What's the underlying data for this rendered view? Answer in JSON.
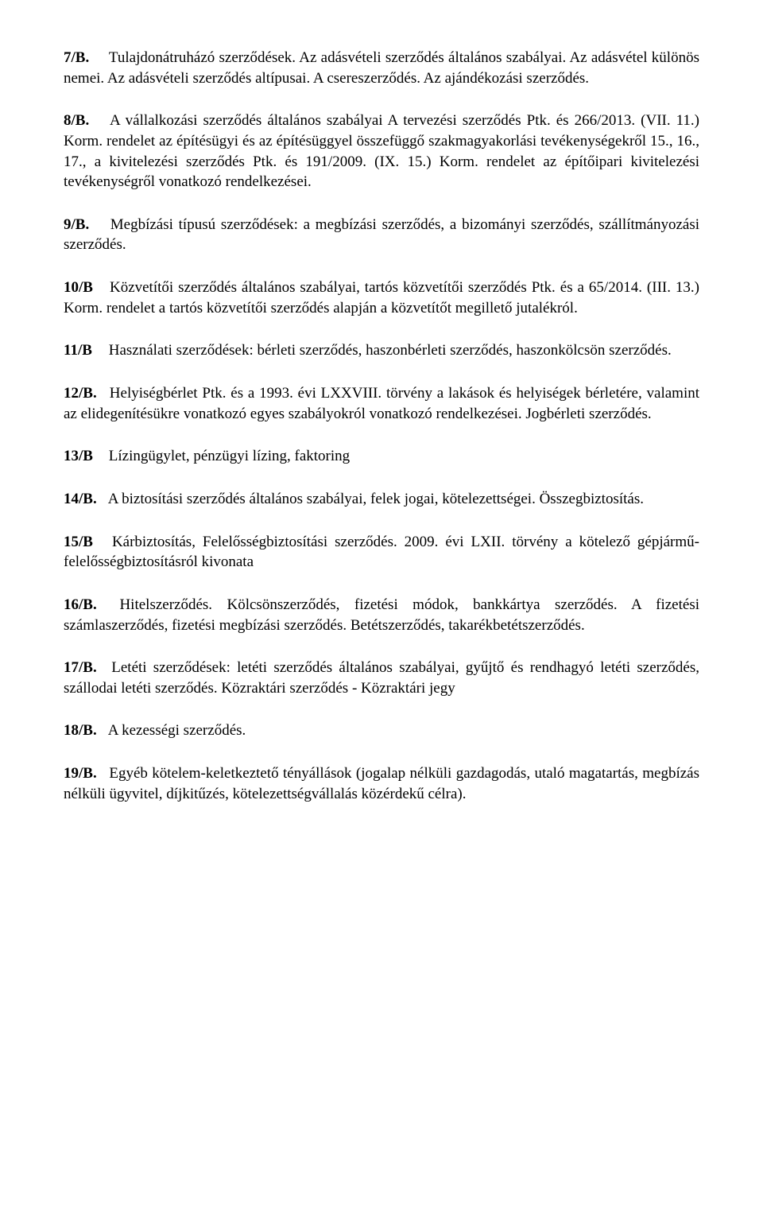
{
  "items": [
    {
      "label": "7/B.",
      "text": "Tulajdonátruházó szerződések. Az adásvételi szerződés általános szabályai. Az adásvétel különös nemei. Az adásvételi szerződés altípusai. A csereszerződés. Az ajándékozási szerződés."
    },
    {
      "label": "8/B.",
      "text": "A vállalkozási szerződés általános szabályai A tervezési szerződés Ptk. és 266/2013. (VII. 11.) Korm. rendelet az építésügyi és az építésüggyel összefüggő szakmagyakorlási tevékenységekről 15., 16., 17., a kivitelezési szerződés Ptk. és 191/2009. (IX. 15.) Korm. rendelet az építőipari kivitelezési tevékenységről vonatkozó rendelkezései."
    },
    {
      "label": "9/B.",
      "text": "Megbízási típusú szerződések: a megbízási szerződés, a bizományi szerződés, szállítmányozási szerződés."
    },
    {
      "label": "10/B",
      "text": "Közvetítői szerződés általános szabályai, tartós közvetítői szerződés Ptk. és a 65/2014. (III. 13.) Korm. rendelet a tartós közvetítői szerződés alapján a közvetítőt megillető jutalékról."
    },
    {
      "label": "11/B",
      "text": "Használati szerződések: bérleti szerződés, haszonbérleti szerződés, haszonkölcsön szerződés."
    },
    {
      "label": "12/B.",
      "text": "Helyiségbérlet Ptk. és a 1993. évi LXXVIII. törvény a lakások és helyiségek bérletére, valamint az elidegenítésükre vonatkozó egyes szabályokról vonatkozó rendelkezései. Jogbérleti szerződés."
    },
    {
      "label": "13/B",
      "text": "Lízingügylet, pénzügyi lízing, faktoring"
    },
    {
      "label": "14/B.",
      "text": "A biztosítási szerződés általános szabályai, felek jogai, kötelezettségei. Összegbiztosítás."
    },
    {
      "label": "15/B",
      "text": "Kárbiztosítás, Felelősségbiztosítási szerződés. 2009. évi LXII. törvény a kötelező gépjármű-felelősségbiztosításról kivonata"
    },
    {
      "label": "16/B.",
      "text": "Hitelszerződés. Kölcsönszerződés, fizetési módok, bankkártya szerződés. A fizetési számlaszerződés, fizetési megbízási szerződés. Betétszerződés, takarékbetétszerződés."
    },
    {
      "label": "17/B.",
      "text": "Letéti szerződések: letéti szerződés általános szabályai, gyűjtő és rendhagyó letéti szerződés, szállodai letéti szerződés. Közraktári szerződés - Közraktári jegy"
    },
    {
      "label": "18/B.",
      "text": "A kezességi szerződés."
    },
    {
      "label": "19/B.",
      "text": "Egyéb kötelem-keletkeztető tényállások (jogalap nélküli gazdagodás, utaló magatartás, megbízás nélküli ügyvitel, díjkitűzés, kötelezettségvállalás közérdekű célra)."
    }
  ]
}
